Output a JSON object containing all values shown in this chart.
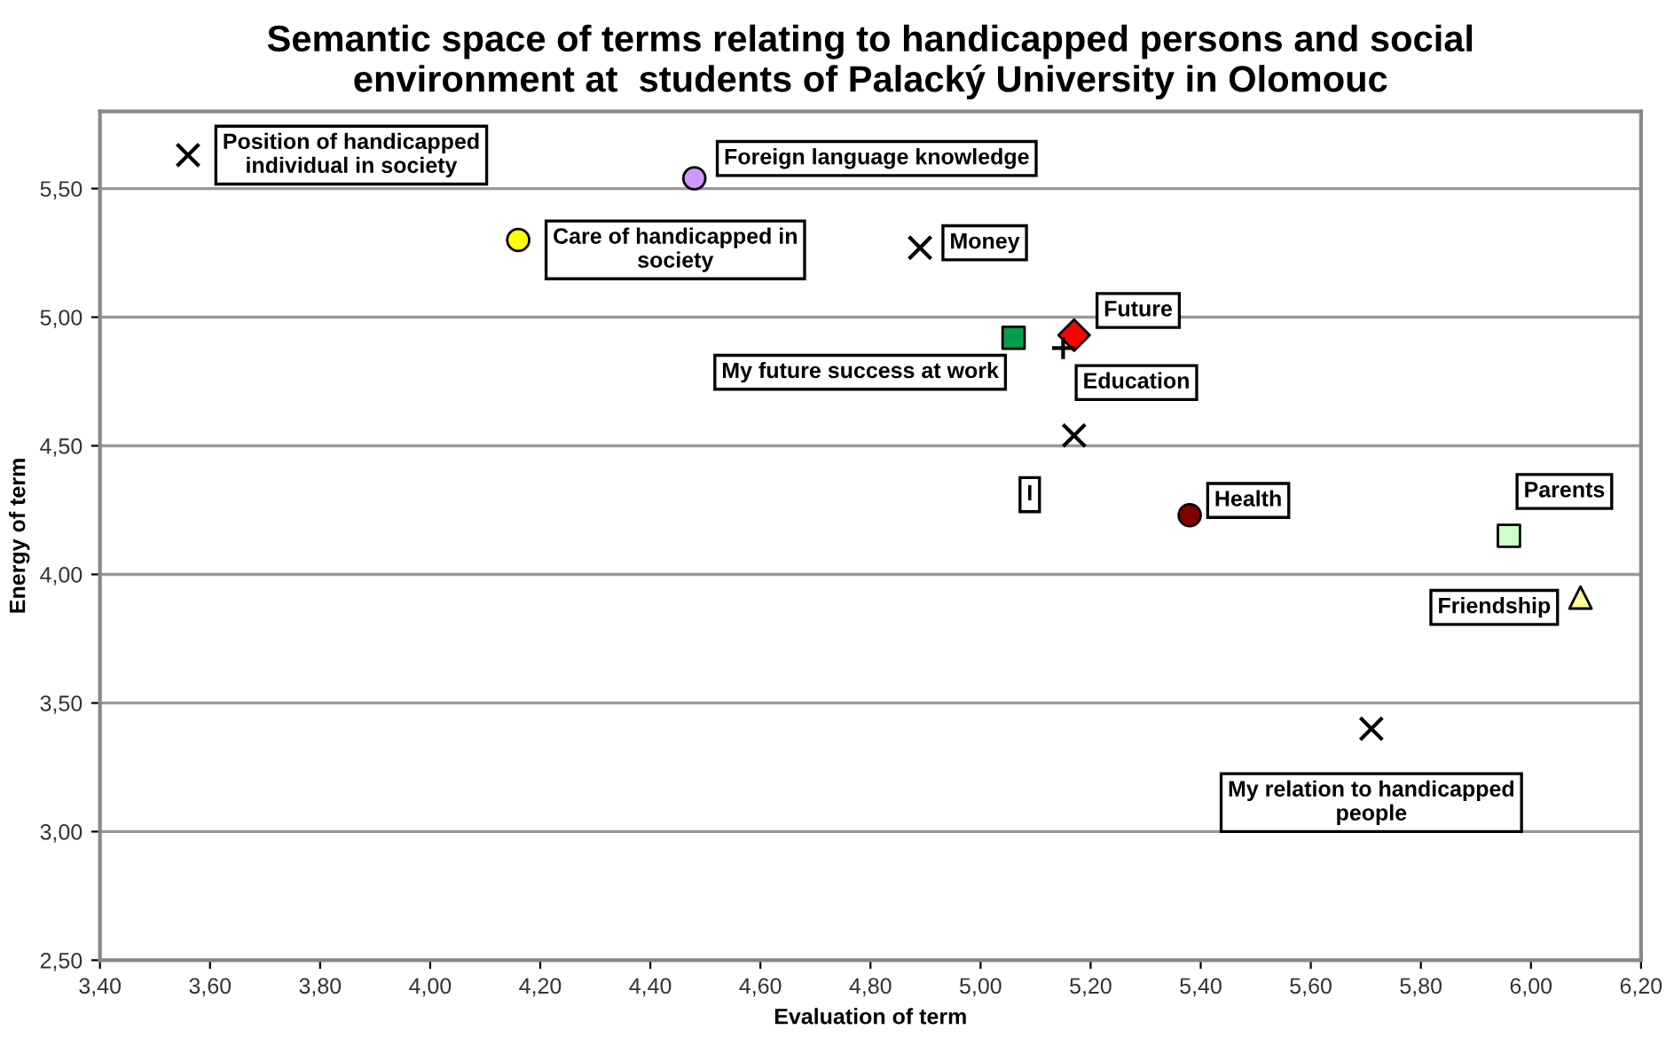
{
  "chart_data": {
    "type": "scatter",
    "title": "Semantic space of terms relating to handicapped persons and social\nenvironment at  students of Palacký University in Olomouc",
    "xlabel": "Evaluation of term",
    "ylabel": "Energy of term",
    "xlim": [
      3.4,
      6.2
    ],
    "ylim": [
      2.5,
      5.8
    ],
    "xticks": [
      {
        "value": 3.4,
        "label": "3,40"
      },
      {
        "value": 3.6,
        "label": "3,60"
      },
      {
        "value": 3.8,
        "label": "3,80"
      },
      {
        "value": 4.0,
        "label": "4,00"
      },
      {
        "value": 4.2,
        "label": "4,20"
      },
      {
        "value": 4.4,
        "label": "4,40"
      },
      {
        "value": 4.6,
        "label": "4,60"
      },
      {
        "value": 4.8,
        "label": "4,80"
      },
      {
        "value": 5.0,
        "label": "5,00"
      },
      {
        "value": 5.2,
        "label": "5,20"
      },
      {
        "value": 5.4,
        "label": "5,40"
      },
      {
        "value": 5.6,
        "label": "5,60"
      },
      {
        "value": 5.8,
        "label": "5,80"
      },
      {
        "value": 6.0,
        "label": "6,00"
      },
      {
        "value": 6.2,
        "label": "6,20"
      }
    ],
    "yticks": [
      {
        "value": 2.5,
        "label": "2,50"
      },
      {
        "value": 3.0,
        "label": "3,00"
      },
      {
        "value": 3.5,
        "label": "3,50"
      },
      {
        "value": 4.0,
        "label": "4,00"
      },
      {
        "value": 4.5,
        "label": "4,50"
      },
      {
        "value": 5.0,
        "label": "5,00"
      },
      {
        "value": 5.5,
        "label": "5,50"
      }
    ],
    "grid": "y",
    "series": [
      {
        "name": "Position of handicapped\nindividual in society",
        "color": "#000000",
        "marker": "cross",
        "x": [
          3.56
        ],
        "values": [
          5.63
        ]
      },
      {
        "name": "Foreign language knowledge",
        "color": "#cc99ff",
        "marker": "circle",
        "x": [
          4.48
        ],
        "values": [
          5.54
        ]
      },
      {
        "name": "Care of handicapped in\nsociety",
        "color": "#ffff00",
        "marker": "circle",
        "x": [
          4.16
        ],
        "values": [
          5.3
        ]
      },
      {
        "name": "Money",
        "color": "#000000",
        "marker": "cross",
        "x": [
          4.89
        ],
        "values": [
          5.27
        ]
      },
      {
        "name": "My future success at work",
        "color": "#00a050",
        "marker": "square",
        "x": [
          5.06
        ],
        "values": [
          4.92
        ]
      },
      {
        "name": "Future",
        "color": "#ff0000",
        "marker": "diamond",
        "x": [
          5.17
        ],
        "values": [
          4.93
        ]
      },
      {
        "name": "Education",
        "color": "#000000",
        "marker": "plus",
        "x": [
          5.15
        ],
        "values": [
          4.88
        ]
      },
      {
        "name": "I",
        "color": "#000000",
        "marker": "cross",
        "x": [
          5.17
        ],
        "values": [
          4.54
        ]
      },
      {
        "name": "Health",
        "color": "#800000",
        "marker": "circle",
        "x": [
          5.38
        ],
        "values": [
          4.23
        ]
      },
      {
        "name": "Parents",
        "color": "#ccffcc",
        "marker": "square",
        "x": [
          5.96
        ],
        "values": [
          4.15
        ]
      },
      {
        "name": "Friendship",
        "color": "#ffff99",
        "marker": "triangle",
        "x": [
          6.09
        ],
        "values": [
          3.91
        ]
      },
      {
        "name": "My relation to handicapped\npeople",
        "color": "#000000",
        "marker": "cross",
        "x": [
          5.71
        ],
        "values": [
          3.4
        ]
      }
    ]
  }
}
